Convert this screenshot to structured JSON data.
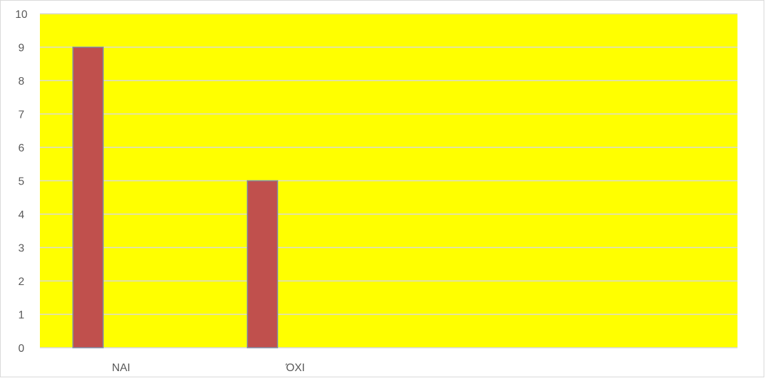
{
  "chart_data": {
    "type": "bar",
    "categories": [
      "NAI",
      "ΌΧΙ",
      "",
      ""
    ],
    "series": [
      {
        "values": [
          9,
          5,
          null,
          null
        ]
      }
    ],
    "yticks": [
      "0",
      "1",
      "2",
      "3",
      "4",
      "5",
      "6",
      "7",
      "8",
      "9",
      "10"
    ],
    "ylim": [
      0,
      10
    ],
    "grid": true,
    "legend": "none",
    "colors": {
      "plot_background": "#ffff00",
      "bar_fill": "#c0504d",
      "bar_stroke": "#7f8fa6",
      "gridline": "#d9d9d9",
      "axis_text": "#595959"
    }
  }
}
